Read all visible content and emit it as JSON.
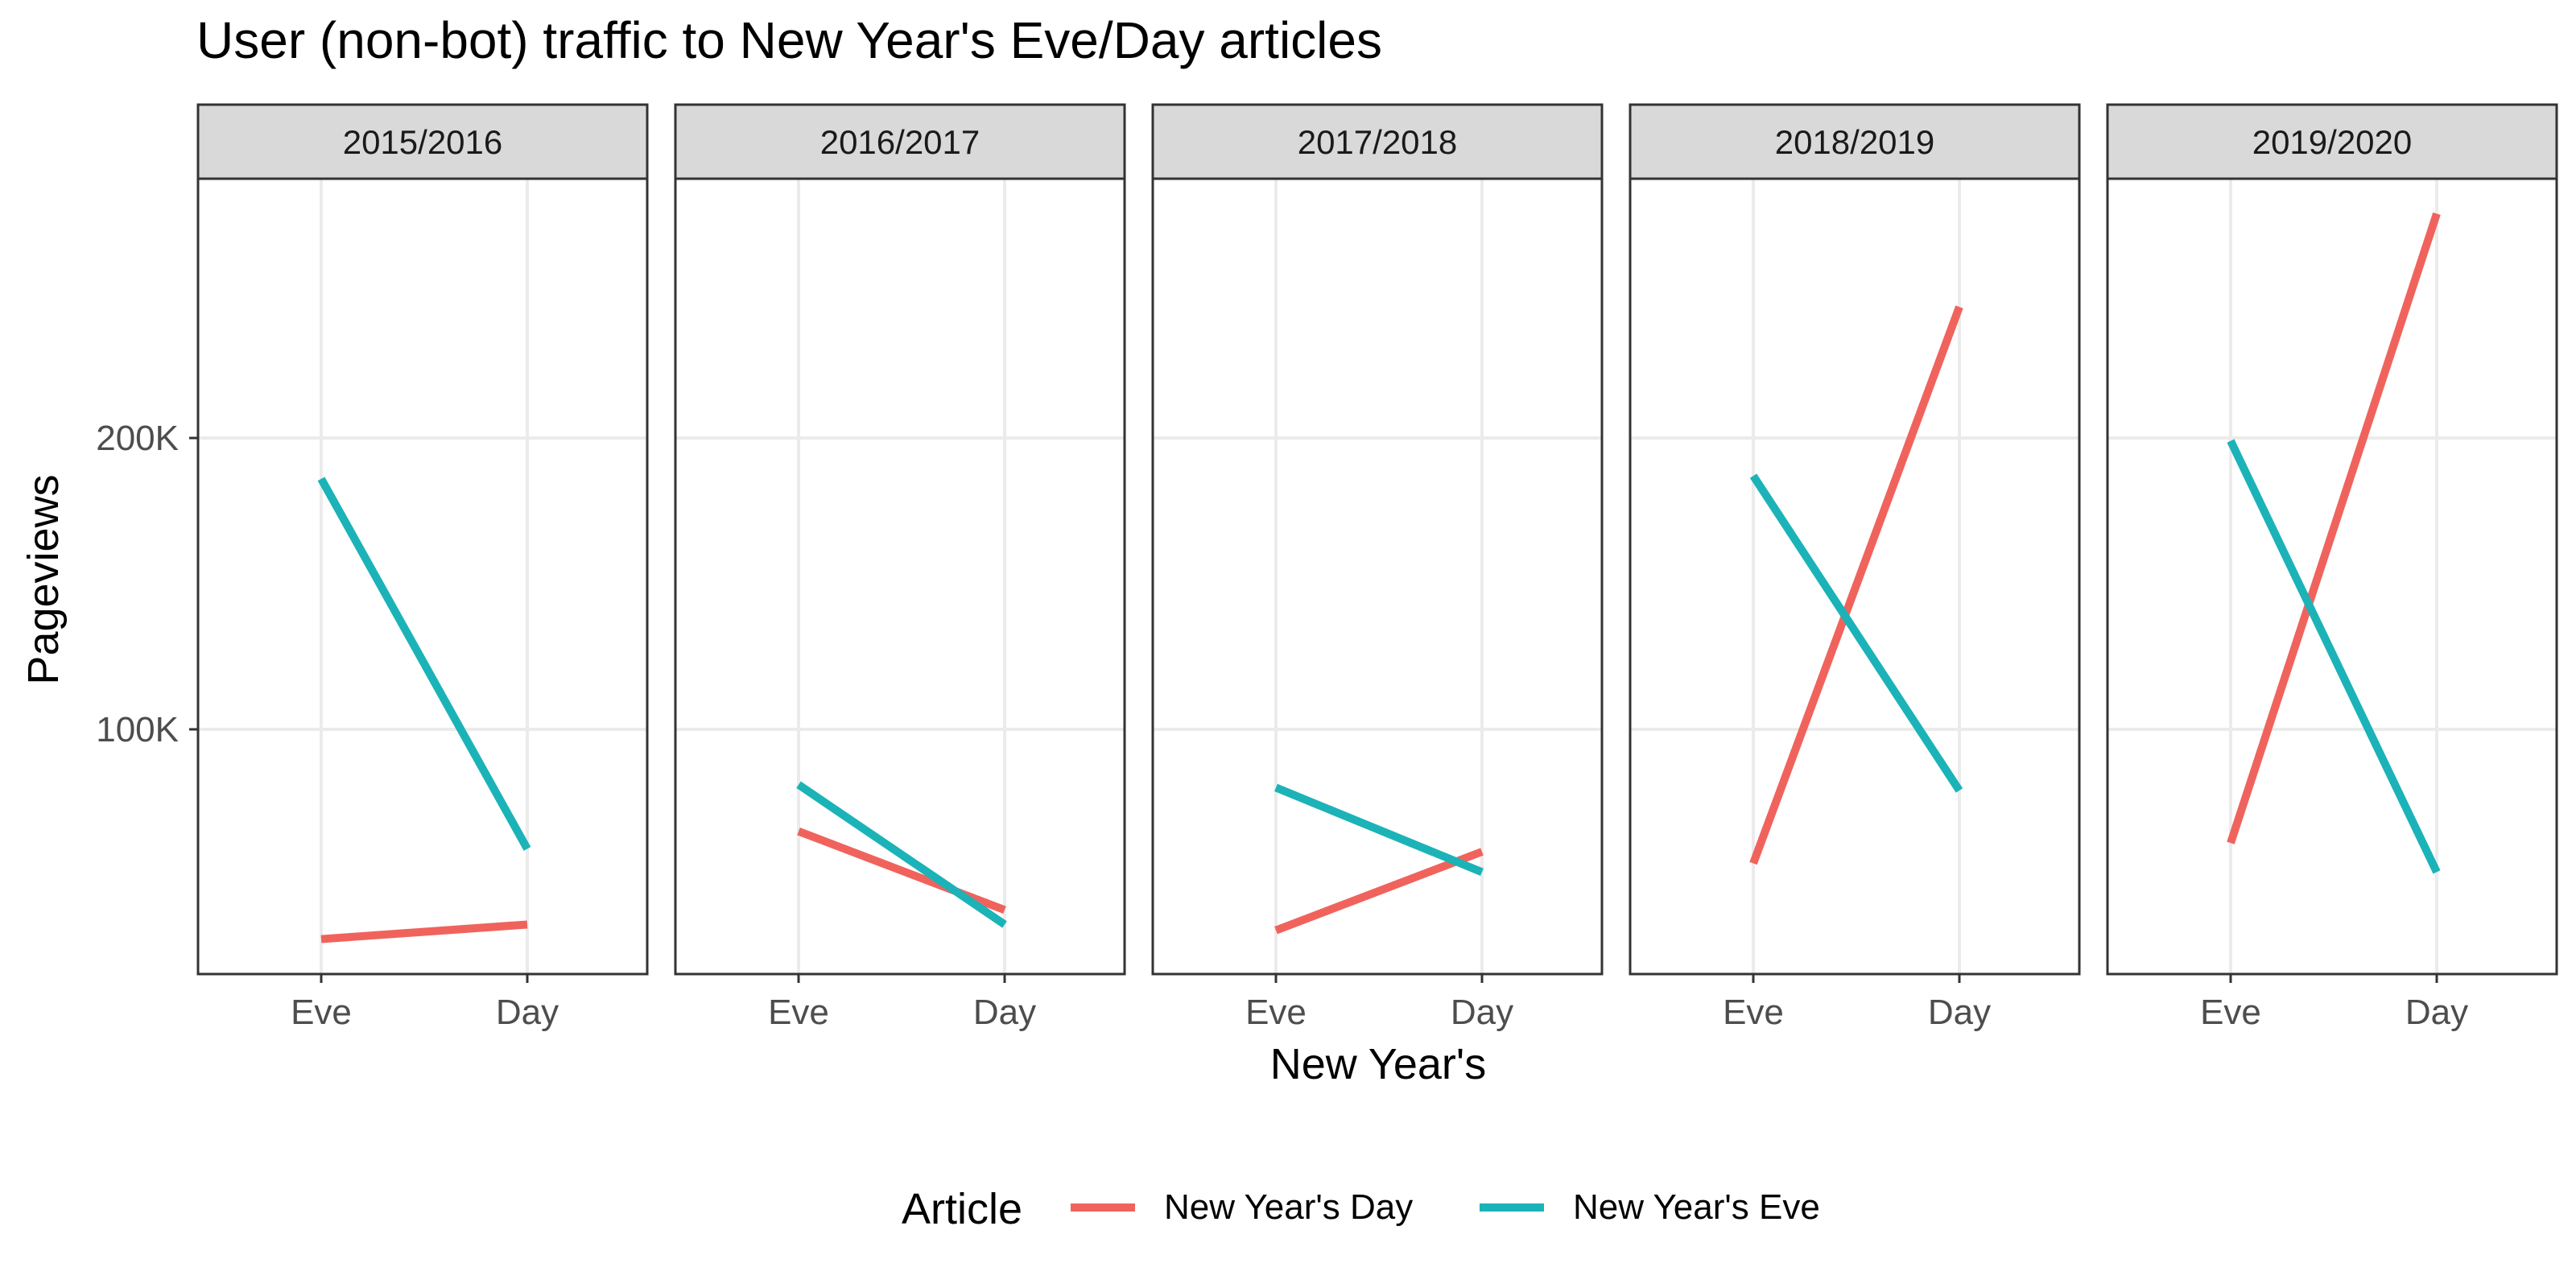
{
  "chart_data": {
    "type": "line",
    "title": "User (non-bot) traffic to New Year's Eve/Day articles",
    "xlabel": "New Year's",
    "ylabel": "Pageviews",
    "x_categories": [
      "Eve",
      "Day"
    ],
    "y_ticks": [
      {
        "value": 100000,
        "label": "100K"
      },
      {
        "value": 200000,
        "label": "200K"
      }
    ],
    "ylim": [
      16000,
      289000
    ],
    "grid": true,
    "legend": {
      "title": "Article",
      "position": "bottom",
      "entries": [
        {
          "name": "New Year's Day",
          "color": "#F0635D"
        },
        {
          "name": "New Year's Eve",
          "color": "#1BB3B8"
        }
      ]
    },
    "panels": [
      {
        "label": "2015/2016",
        "series": [
          {
            "name": "New Year's Day",
            "values": [
              28000,
              33000
            ]
          },
          {
            "name": "New Year's Eve",
            "values": [
              186000,
              59000
            ]
          }
        ]
      },
      {
        "label": "2016/2017",
        "series": [
          {
            "name": "New Year's Day",
            "values": [
              65000,
              38000
            ]
          },
          {
            "name": "New Year's Eve",
            "values": [
              81000,
              33000
            ]
          }
        ]
      },
      {
        "label": "2017/2018",
        "series": [
          {
            "name": "New Year's Day",
            "values": [
              31000,
              58000
            ]
          },
          {
            "name": "New Year's Eve",
            "values": [
              80000,
              51000
            ]
          }
        ]
      },
      {
        "label": "2018/2019",
        "series": [
          {
            "name": "New Year's Day",
            "values": [
              54000,
              245000
            ]
          },
          {
            "name": "New Year's Eve",
            "values": [
              187000,
              79000
            ]
          }
        ]
      },
      {
        "label": "2019/2020",
        "series": [
          {
            "name": "New Year's Day",
            "values": [
              61000,
              277000
            ]
          },
          {
            "name": "New Year's Eve",
            "values": [
              199000,
              51000
            ]
          }
        ]
      }
    ]
  }
}
